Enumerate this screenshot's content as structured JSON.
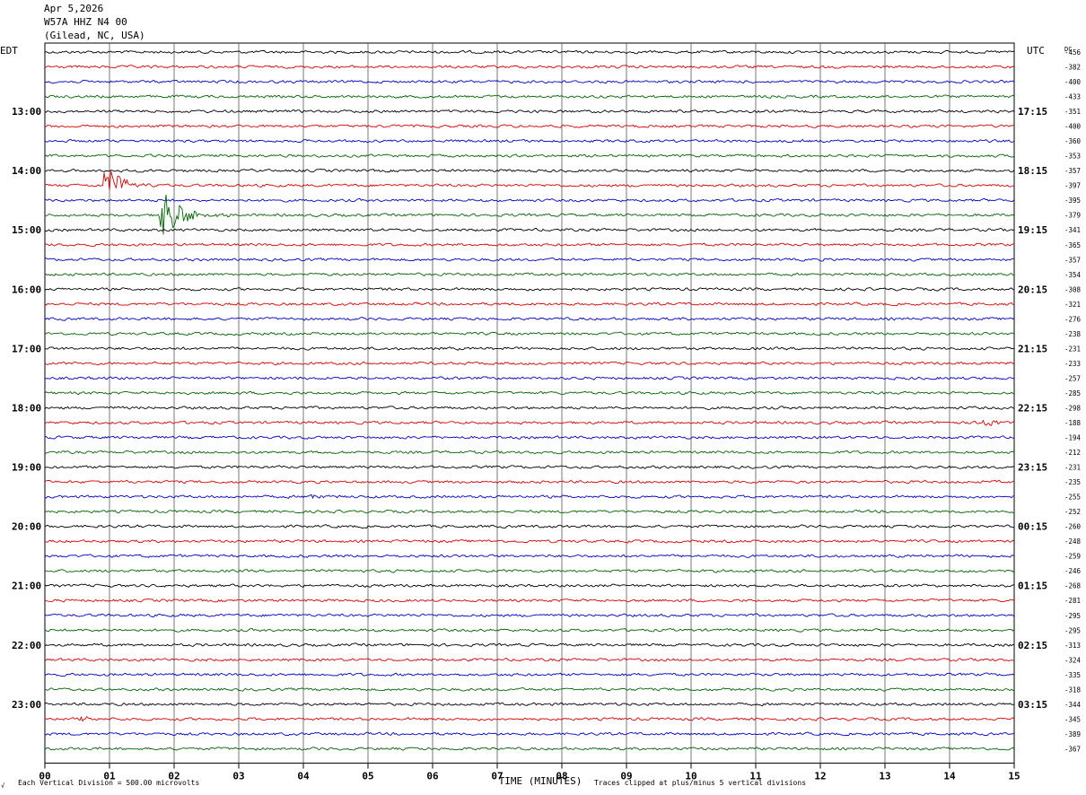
{
  "header": {
    "date": "Apr 5,2026",
    "station": "W57A HHZ N4 00",
    "location": "(Gilead, NC, USA)"
  },
  "chart_data": {
    "type": "line",
    "left_timezone": "EDT",
    "right_timezone": "UTC",
    "dc_header": "DC",
    "xlabel": "TIME (MINUTES)",
    "x_ticks": [
      "00",
      "01",
      "02",
      "03",
      "04",
      "05",
      "06",
      "07",
      "08",
      "09",
      "10",
      "11",
      "12",
      "13",
      "14",
      "15"
    ],
    "xlim": [
      0,
      15
    ],
    "left_hour_labels": [
      "13:00",
      "14:00",
      "15:00",
      "16:00",
      "17:00",
      "18:00",
      "19:00",
      "20:00",
      "21:00",
      "22:00",
      "23:00"
    ],
    "right_hour_labels": [
      "17:15",
      "18:15",
      "19:15",
      "20:15",
      "21:15",
      "22:15",
      "23:15",
      "00:15",
      "01:15",
      "02:15",
      "03:15"
    ],
    "dc_offsets": [
      "-456",
      "-382",
      "-400",
      "-433",
      "-351",
      "-400",
      "-360",
      "-353",
      "-357",
      "-397",
      "-395",
      "-379",
      "-341",
      "-365",
      "-357",
      "-354",
      "-308",
      "-321",
      "-276",
      "-238",
      "-231",
      "-233",
      "-257",
      "-285",
      "-298",
      "-188",
      "-194",
      "-212",
      "-231",
      "-235",
      "-255",
      "-252",
      "-260",
      "-248",
      "-259",
      "-246",
      "-268",
      "-281",
      "-295",
      "-295",
      "-313",
      "-324",
      "-335",
      "-318",
      "-344",
      "-345",
      "-389",
      "-367"
    ],
    "trace_colors": [
      "#000000",
      "#dd0000",
      "#0000cc",
      "#006600"
    ],
    "events": [
      {
        "trace": 9,
        "start_min": 0.9,
        "duration_min": 1.0,
        "amplitude_div": 1.6
      },
      {
        "trace": 11,
        "start_min": 1.75,
        "duration_min": 1.2,
        "amplitude_div": 2.2
      },
      {
        "trace": 30,
        "start_min": 4.1,
        "duration_min": 0.4,
        "amplitude_div": 0.35
      },
      {
        "trace": 25,
        "start_min": 14.5,
        "duration_min": 0.5,
        "amplitude_div": 0.45
      },
      {
        "trace": 45,
        "start_min": 0.55,
        "duration_min": 0.3,
        "amplitude_div": 0.3
      }
    ],
    "footer_left": "Each Vertical Division =  500.00 microvolts",
    "footer_right": "Traces clipped at plus/minus 5 vertical divisions",
    "corner_mark": "√"
  }
}
